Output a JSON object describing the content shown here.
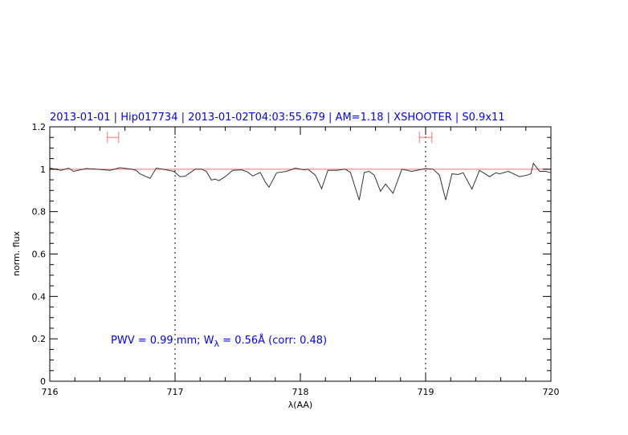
{
  "chart_data": {
    "type": "line",
    "title": "2013-01-01 | Hip017734 | 2013-01-02T04:03:55.679 | AM=1.18 | XSHOOTER | S0.9x11",
    "xlabel": "λ(AA)",
    "ylabel": "norm. flux",
    "xlim": [
      716,
      720
    ],
    "ylim": [
      0,
      1.2
    ],
    "xticks": [
      "716",
      "717",
      "718",
      "719",
      "720"
    ],
    "yticks": [
      "0",
      "0.2",
      "0.4",
      "0.6",
      "0.8",
      "1",
      "1.2"
    ],
    "grid": false,
    "reference_line": {
      "y": 1.0,
      "color": "#ff7070"
    },
    "vertical_dotted_lines": [
      717,
      719
    ],
    "error_bars": [
      {
        "x_min": 716.46,
        "x_max": 716.55,
        "y": 1.15
      },
      {
        "x_min": 718.95,
        "x_max": 719.05,
        "y": 1.15
      }
    ],
    "annotation": {
      "main": "PWV  =  0.99  mm;  W",
      "sub": "λ",
      "rest": "  =  0.56Å  (corr: 0.48)"
    },
    "colors": {
      "text": "#0000ff",
      "spectrum": "#333333",
      "error_bar": "#ff7070"
    },
    "series": [
      {
        "x": [
          716.0,
          716.09,
          716.15,
          716.19,
          716.29,
          716.37,
          716.48,
          716.56,
          716.65,
          716.69,
          716.72,
          716.8,
          716.85,
          716.93,
          716.99,
          717.04,
          717.08,
          717.16,
          717.21,
          717.25,
          717.29,
          717.32,
          717.35,
          717.4,
          717.46,
          717.53,
          717.58,
          717.62,
          717.68,
          717.72,
          717.75,
          717.81,
          717.89,
          717.96,
          718.03,
          718.06,
          718.12,
          718.17,
          718.22,
          718.29,
          718.36,
          718.4,
          718.47,
          718.51,
          718.55,
          718.59,
          718.64,
          718.68,
          718.74,
          718.81,
          718.89,
          719.0,
          719.06,
          719.11,
          719.16,
          719.21,
          719.26,
          719.3,
          719.37,
          719.43,
          719.51,
          719.56,
          719.59,
          719.66,
          719.75,
          719.81,
          719.84,
          719.86,
          719.91,
          719.96,
          720.0
        ],
        "y": [
          1.005,
          0.995,
          1.005,
          0.99,
          1.003,
          1.0,
          0.995,
          1.007,
          1.0,
          0.995,
          0.978,
          0.957,
          1.005,
          0.997,
          0.99,
          0.965,
          0.967,
          1.0,
          1.0,
          0.99,
          0.949,
          0.953,
          0.946,
          0.965,
          0.995,
          0.997,
          0.987,
          0.968,
          0.985,
          0.94,
          0.915,
          0.983,
          0.99,
          1.005,
          0.997,
          1.0,
          0.972,
          0.908,
          0.995,
          0.995,
          1.0,
          0.985,
          0.854,
          0.985,
          0.99,
          0.972,
          0.896,
          0.93,
          0.886,
          1.0,
          0.99,
          1.003,
          1.0,
          0.972,
          0.855,
          0.978,
          0.975,
          0.983,
          0.906,
          0.995,
          0.965,
          0.983,
          0.978,
          0.99,
          0.965,
          0.972,
          0.978,
          1.028,
          0.99,
          0.99,
          0.983
        ]
      }
    ]
  }
}
